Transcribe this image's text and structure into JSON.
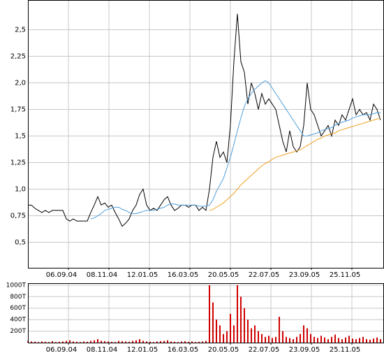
{
  "chart_data": [
    {
      "type": "line",
      "x": [
        0,
        1,
        2,
        3,
        4,
        5,
        6,
        7,
        8,
        9,
        10,
        11,
        12,
        13,
        14,
        15,
        16,
        17,
        18,
        19,
        20,
        21,
        22,
        23,
        24,
        25,
        26,
        27,
        28,
        29,
        30,
        31,
        32,
        33,
        34,
        35,
        36,
        37,
        38,
        39,
        40,
        41,
        42,
        43,
        44,
        45,
        46,
        47,
        48,
        49,
        50,
        51,
        52,
        53,
        54,
        55,
        56,
        57,
        58,
        59,
        60,
        61,
        62,
        63,
        64,
        65,
        66,
        67,
        68,
        69,
        70,
        71,
        72,
        73,
        74,
        75,
        76,
        77,
        78,
        79,
        80,
        81,
        82,
        83,
        84,
        85,
        86,
        87,
        88,
        89,
        90,
        91,
        92,
        93,
        94,
        95,
        96,
        97,
        98,
        99,
        100,
        101
      ],
      "series": [
        {
          "color": "#000000",
          "values": [
            0.85,
            0.85,
            0.82,
            0.8,
            0.78,
            0.8,
            0.78,
            0.8,
            0.8,
            0.8,
            0.8,
            0.72,
            0.7,
            0.72,
            0.7,
            0.7,
            0.7,
            0.7,
            0.78,
            0.85,
            0.93,
            0.85,
            0.87,
            0.83,
            0.85,
            0.78,
            0.72,
            0.65,
            0.68,
            0.72,
            0.8,
            0.85,
            0.95,
            1.0,
            0.85,
            0.8,
            0.82,
            0.8,
            0.85,
            0.9,
            0.93,
            0.85,
            0.8,
            0.82,
            0.85,
            0.85,
            0.83,
            0.85,
            0.85,
            0.8,
            0.83,
            0.8,
            1.0,
            1.3,
            1.45,
            1.3,
            1.35,
            1.25,
            1.6,
            2.2,
            2.65,
            2.2,
            2.1,
            1.8,
            2.0,
            1.9,
            1.75,
            1.9,
            1.8,
            1.85,
            1.8,
            1.75,
            1.6,
            1.45,
            1.35,
            1.55,
            1.4,
            1.35,
            1.4,
            1.6,
            2.0,
            1.75,
            1.7,
            1.6,
            1.5,
            1.55,
            1.6,
            1.5,
            1.65,
            1.6,
            1.7,
            1.65,
            1.75,
            1.85,
            1.7,
            1.75,
            1.7,
            1.72,
            1.65,
            1.8,
            1.75,
            1.65
          ]
        },
        {
          "color": "#4f9fdc",
          "values": [
            null,
            null,
            null,
            null,
            null,
            null,
            null,
            null,
            null,
            null,
            null,
            null,
            null,
            null,
            null,
            null,
            null,
            null,
            0.72,
            0.73,
            0.75,
            0.77,
            0.8,
            0.81,
            0.82,
            0.83,
            0.83,
            0.81,
            0.8,
            0.78,
            0.77,
            0.77,
            0.78,
            0.79,
            0.8,
            0.8,
            0.8,
            0.81,
            0.82,
            0.83,
            0.85,
            0.86,
            0.86,
            0.85,
            0.85,
            0.85,
            0.85,
            0.85,
            0.85,
            0.84,
            0.84,
            0.84,
            0.85,
            0.9,
            0.98,
            1.04,
            1.1,
            1.2,
            1.3,
            1.42,
            1.55,
            1.67,
            1.78,
            1.85,
            1.9,
            1.94,
            1.97,
            2.0,
            2.02,
            2.0,
            1.95,
            1.9,
            1.85,
            1.8,
            1.75,
            1.7,
            1.65,
            1.6,
            1.55,
            1.5,
            1.5,
            1.51,
            1.52,
            1.53,
            1.55,
            1.56,
            1.57,
            1.58,
            1.6,
            1.62,
            1.63,
            1.64,
            1.65,
            1.67,
            1.68,
            1.69,
            1.7,
            1.7,
            1.7,
            1.71,
            1.72,
            1.72
          ]
        },
        {
          "color": "#f0a020",
          "values": [
            null,
            null,
            null,
            null,
            null,
            null,
            null,
            null,
            null,
            null,
            null,
            null,
            null,
            null,
            null,
            null,
            null,
            null,
            null,
            null,
            null,
            null,
            null,
            null,
            null,
            null,
            null,
            null,
            null,
            null,
            null,
            null,
            null,
            null,
            null,
            null,
            null,
            null,
            null,
            null,
            null,
            null,
            null,
            null,
            null,
            null,
            null,
            null,
            null,
            null,
            null,
            null,
            0.8,
            0.81,
            0.83,
            0.85,
            0.87,
            0.9,
            0.93,
            0.96,
            1.0,
            1.04,
            1.07,
            1.1,
            1.13,
            1.16,
            1.19,
            1.22,
            1.24,
            1.26,
            1.28,
            1.3,
            1.31,
            1.32,
            1.33,
            1.34,
            1.35,
            1.36,
            1.37,
            1.39,
            1.41,
            1.43,
            1.45,
            1.47,
            1.48,
            1.5,
            1.51,
            1.52,
            1.53,
            1.55,
            1.56,
            1.57,
            1.58,
            1.59,
            1.6,
            1.61,
            1.62,
            1.63,
            1.64,
            1.65,
            1.66,
            1.67
          ]
        }
      ],
      "xlim": [
        0,
        102
      ],
      "xticks": [
        {
          "value": 11.6,
          "label": "06.09.04"
        },
        {
          "value": 23.2,
          "label": "08.11.04"
        },
        {
          "value": 34.8,
          "label": "12.01.05"
        },
        {
          "value": 46.4,
          "label": "16.03.05"
        },
        {
          "value": 58,
          "label": "20.05.05"
        },
        {
          "value": 69.6,
          "label": "22.07.05"
        },
        {
          "value": 81.2,
          "label": "23.09.05"
        },
        {
          "value": 92.8,
          "label": "25.11.05"
        }
      ],
      "ylim": [
        0.26,
        2.78
      ],
      "yticks": [
        {
          "value": 0.5,
          "label": "0,5"
        },
        {
          "value": 0.75,
          "label": "0,75"
        },
        {
          "value": 1.0,
          "label": "1,0"
        },
        {
          "value": 1.25,
          "label": "1,25"
        },
        {
          "value": 1.5,
          "label": "1,5"
        },
        {
          "value": 1.75,
          "label": "1,75"
        },
        {
          "value": 2.0,
          "label": "2,0"
        },
        {
          "value": 2.25,
          "label": "2,25"
        },
        {
          "value": 2.5,
          "label": "2,5"
        }
      ],
      "grid": true
    },
    {
      "type": "bar",
      "x": [
        0,
        1,
        2,
        3,
        4,
        5,
        6,
        7,
        8,
        9,
        10,
        11,
        12,
        13,
        14,
        15,
        16,
        17,
        18,
        19,
        20,
        21,
        22,
        23,
        24,
        25,
        26,
        27,
        28,
        29,
        30,
        31,
        32,
        33,
        34,
        35,
        36,
        37,
        38,
        39,
        40,
        41,
        42,
        43,
        44,
        45,
        46,
        47,
        48,
        49,
        50,
        51,
        52,
        53,
        54,
        55,
        56,
        57,
        58,
        59,
        60,
        61,
        62,
        63,
        64,
        65,
        66,
        67,
        68,
        69,
        70,
        71,
        72,
        73,
        74,
        75,
        76,
        77,
        78,
        79,
        80,
        81,
        82,
        83,
        84,
        85,
        86,
        87,
        88,
        89,
        90,
        91,
        92,
        93,
        94,
        95,
        96,
        97,
        98,
        99,
        100,
        101
      ],
      "series": [
        {
          "color": "#d00000",
          "values": [
            30,
            20,
            15,
            10,
            20,
            15,
            10,
            25,
            10,
            15,
            20,
            30,
            40,
            20,
            15,
            10,
            20,
            15,
            30,
            40,
            60,
            30,
            25,
            20,
            15,
            10,
            30,
            25,
            20,
            15,
            30,
            40,
            60,
            30,
            20,
            15,
            10,
            20,
            25,
            30,
            40,
            20,
            15,
            10,
            20,
            25,
            15,
            20,
            10,
            15,
            20,
            30,
            1000,
            700,
            400,
            300,
            150,
            200,
            500,
            300,
            1000,
            800,
            600,
            400,
            250,
            300,
            200,
            150,
            100,
            120,
            80,
            100,
            450,
            200,
            100,
            80,
            60,
            100,
            150,
            300,
            250,
            150,
            100,
            80,
            120,
            90,
            60,
            100,
            140,
            80,
            60,
            90,
            120,
            70,
            60,
            80,
            100,
            60,
            50,
            70,
            90,
            60
          ]
        }
      ],
      "xlim": [
        0,
        102
      ],
      "xticks": [
        {
          "value": 11.6,
          "label": "06.09.04"
        },
        {
          "value": 23.2,
          "label": "08.11.04"
        },
        {
          "value": 34.8,
          "label": "12.01.05"
        },
        {
          "value": 46.4,
          "label": "16.03.05"
        },
        {
          "value": 58,
          "label": "20.05.05"
        },
        {
          "value": 69.6,
          "label": "22.07.05"
        },
        {
          "value": 81.2,
          "label": "23.09.05"
        },
        {
          "value": 92.8,
          "label": "25.11.05"
        }
      ],
      "ylim": [
        0,
        1035
      ],
      "yticks": [
        {
          "value": 200,
          "label": "200T"
        },
        {
          "value": 400,
          "label": "400T"
        },
        {
          "value": 600,
          "label": "600T"
        },
        {
          "value": 800,
          "label": "800T"
        },
        {
          "value": 1000,
          "label": "1000T"
        }
      ],
      "grid": true
    }
  ]
}
